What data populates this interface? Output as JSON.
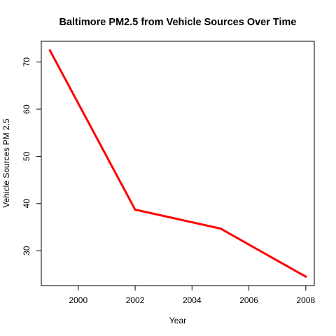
{
  "chart_data": {
    "type": "line",
    "title": "Baltimore PM2.5 from Vehicle Sources Over Time",
    "xlabel": "Year",
    "ylabel": "Vehicle Sources PM 2.5",
    "x": [
      1999,
      2002,
      2005,
      2008
    ],
    "series": [
      {
        "values": [
          72.5,
          38.7,
          34.7,
          24.5
        ],
        "color": "#ff0000"
      }
    ],
    "xlim": [
      1998.7,
      2008.3
    ],
    "ylim": [
      22.6,
      74.4
    ],
    "xticks": [
      "2000",
      "2002",
      "2004",
      "2006",
      "2008"
    ],
    "yticks": [
      "30",
      "40",
      "50",
      "60",
      "70"
    ],
    "grid": false,
    "legend": "none"
  }
}
